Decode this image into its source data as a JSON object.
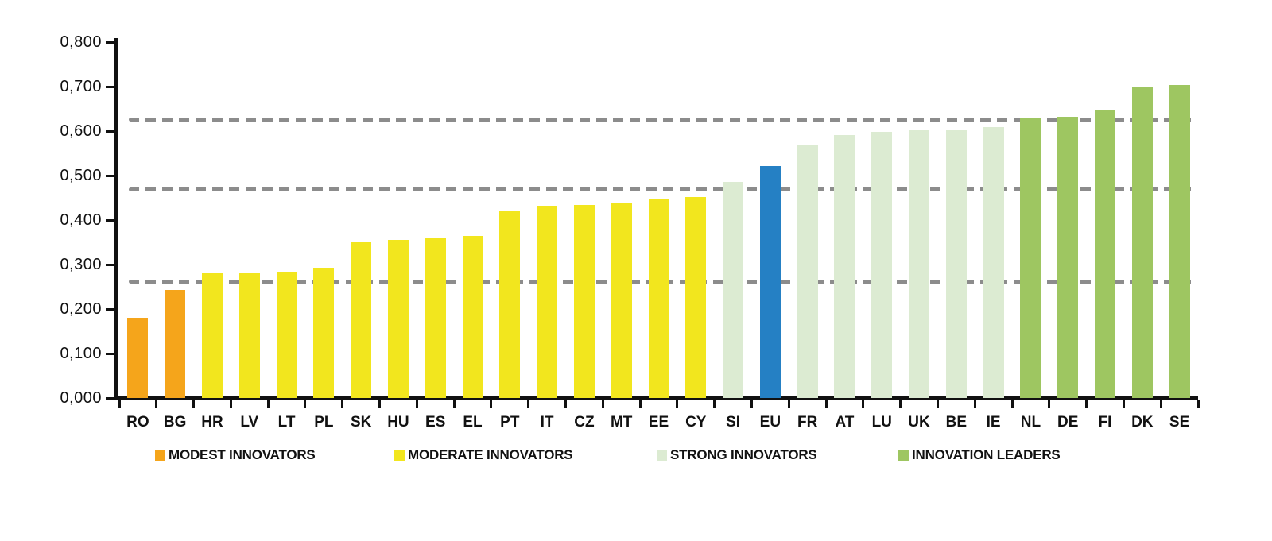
{
  "chart_data": {
    "type": "bar",
    "title": "",
    "xlabel": "",
    "ylabel": "",
    "ylim": [
      0,
      0.8
    ],
    "grid": false,
    "ytick_labels": [
      "0,000",
      "0,100",
      "0,200",
      "0,300",
      "0,400",
      "0,500",
      "0,600",
      "0,700",
      "0,800"
    ],
    "ytick_values": [
      0.0,
      0.1,
      0.2,
      0.3,
      0.4,
      0.5,
      0.6,
      0.7,
      0.8
    ],
    "categories": [
      "RO",
      "BG",
      "HR",
      "LV",
      "LT",
      "PL",
      "SK",
      "HU",
      "ES",
      "EL",
      "PT",
      "IT",
      "CZ",
      "MT",
      "EE",
      "CY",
      "SI",
      "EU",
      "FR",
      "AT",
      "LU",
      "UK",
      "BE",
      "IE",
      "NL",
      "DE",
      "FI",
      "DK",
      "SE"
    ],
    "values": [
      0.18,
      0.242,
      0.28,
      0.281,
      0.282,
      0.292,
      0.35,
      0.355,
      0.361,
      0.364,
      0.419,
      0.432,
      0.434,
      0.437,
      0.448,
      0.451,
      0.485,
      0.521,
      0.568,
      0.591,
      0.598,
      0.602,
      0.602,
      0.609,
      0.631,
      0.632,
      0.649,
      0.7,
      0.704
    ],
    "bar_groups": [
      "modest",
      "modest",
      "moderate",
      "moderate",
      "moderate",
      "moderate",
      "moderate",
      "moderate",
      "moderate",
      "moderate",
      "moderate",
      "moderate",
      "moderate",
      "moderate",
      "moderate",
      "moderate",
      "strong",
      "eu",
      "strong",
      "strong",
      "strong",
      "strong",
      "strong",
      "strong",
      "leaders",
      "leaders",
      "leaders",
      "leaders",
      "leaders"
    ],
    "threshold_lines": [
      0.261,
      0.469,
      0.626
    ],
    "legend_position": "bottom"
  },
  "colors": {
    "modest": "#F5A51B",
    "moderate": "#F2E61E",
    "strong": "#DCEBD2",
    "leaders": "#9EC661",
    "eu": "#2580C4",
    "threshold": "#8C8C8C",
    "axis": "#111111"
  },
  "legend": {
    "items": [
      {
        "label": "MODEST INNOVATORS",
        "group": "modest"
      },
      {
        "label": "MODERATE INNOVATORS",
        "group": "moderate"
      },
      {
        "label": "STRONG INNOVATORS",
        "group": "strong"
      },
      {
        "label": "INNOVATION LEADERS",
        "group": "leaders"
      }
    ]
  }
}
